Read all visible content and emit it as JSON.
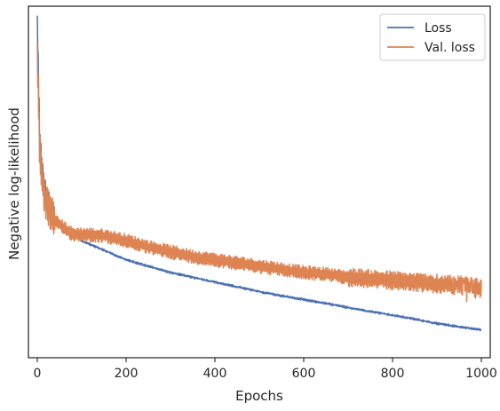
{
  "chart_data": {
    "type": "line",
    "title": "",
    "xlabel": "Epochs",
    "ylabel": "Negative log-likelihood",
    "xlim": [
      -20,
      1020
    ],
    "xticks": [
      0,
      200,
      400,
      600,
      800,
      1000
    ],
    "ylim": [
      0,
      100
    ],
    "y_tick_labels_shown": false,
    "grid": false,
    "legend_position": "top-right",
    "series": [
      {
        "name": "Loss",
        "color": "#4c72b0",
        "points": [
          [
            0,
            100
          ],
          [
            2,
            88
          ],
          [
            5,
            67
          ],
          [
            10,
            55
          ],
          [
            15,
            50
          ],
          [
            20,
            46
          ],
          [
            30,
            42
          ],
          [
            40,
            39
          ],
          [
            60,
            36
          ],
          [
            80,
            34
          ],
          [
            100,
            32
          ],
          [
            150,
            29
          ],
          [
            200,
            26
          ],
          [
            250,
            24
          ],
          [
            300,
            22
          ],
          [
            350,
            20.5
          ],
          [
            400,
            19
          ],
          [
            450,
            17.5
          ],
          [
            500,
            16
          ],
          [
            550,
            14.7
          ],
          [
            600,
            13.5
          ],
          [
            650,
            12.3
          ],
          [
            700,
            11
          ],
          [
            750,
            9.8
          ],
          [
            800,
            8.6
          ],
          [
            850,
            7.4
          ],
          [
            900,
            6
          ],
          [
            950,
            5
          ],
          [
            1000,
            4
          ]
        ]
      },
      {
        "name": "Val. loss",
        "color": "#dd8452",
        "points": [
          [
            0,
            89
          ],
          [
            2,
            80
          ],
          [
            5,
            62
          ],
          [
            10,
            52
          ],
          [
            15,
            47
          ],
          [
            20,
            44
          ],
          [
            30,
            41
          ],
          [
            40,
            38
          ],
          [
            60,
            36
          ],
          [
            80,
            34
          ],
          [
            100,
            34
          ],
          [
            150,
            33.5
          ],
          [
            200,
            32
          ],
          [
            250,
            30
          ],
          [
            300,
            28.5
          ],
          [
            350,
            27
          ],
          [
            400,
            26
          ],
          [
            450,
            25
          ],
          [
            500,
            24
          ],
          [
            550,
            23
          ],
          [
            600,
            22
          ],
          [
            650,
            21.5
          ],
          [
            700,
            20.5
          ],
          [
            750,
            20
          ],
          [
            800,
            19.5
          ],
          [
            850,
            19
          ],
          [
            900,
            18.5
          ],
          [
            950,
            18
          ],
          [
            1000,
            17
          ]
        ]
      }
    ]
  }
}
